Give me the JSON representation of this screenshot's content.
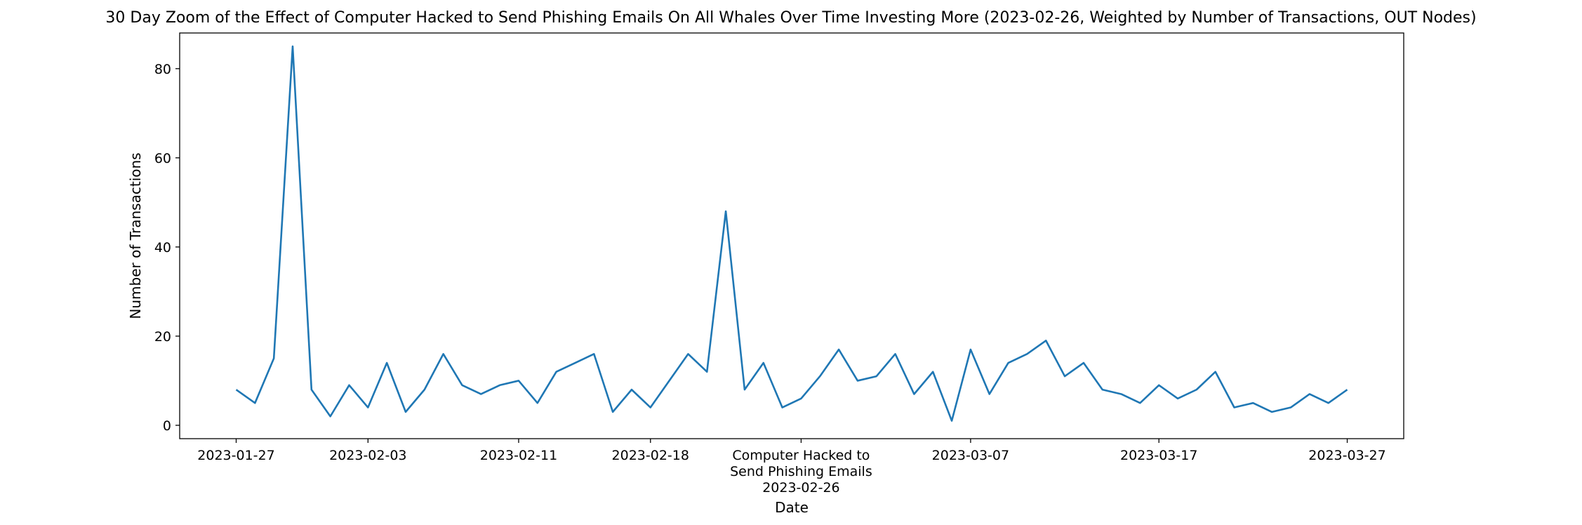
{
  "chart_data": {
    "type": "line",
    "title": "30 Day Zoom of the Effect of Computer Hacked to Send Phishing Emails On All Whales Over Time Investing More (2023-02-26, Weighted by Number of Transactions, OUT Nodes)",
    "xlabel": "Date",
    "ylabel": "Number of Transactions",
    "x_axis_type": "date",
    "xlim": [
      "2023-01-24",
      "2023-03-30"
    ],
    "ylim": [
      -3,
      88
    ],
    "grid": false,
    "color": "#1f77b4",
    "x_ticks": [
      "2023-01-27",
      "2023-02-03",
      "2023-02-11",
      "2023-02-18",
      "2023-02-26",
      "2023-03-07",
      "2023-03-17",
      "2023-03-27"
    ],
    "x_tick_labels": [
      "2023-01-27",
      "2023-02-03",
      "2023-02-11",
      "2023-02-18",
      "Computer Hacked to\nSend Phishing Emails\n2023-02-26",
      "2023-03-07",
      "2023-03-17",
      "2023-03-27"
    ],
    "y_ticks": [
      0,
      20,
      40,
      60,
      80
    ],
    "event": {
      "date": "2023-02-26",
      "label": "Computer Hacked to\nSend Phishing Emails"
    },
    "x": [
      "2023-01-27",
      "2023-01-28",
      "2023-01-29",
      "2023-01-30",
      "2023-01-31",
      "2023-02-01",
      "2023-02-02",
      "2023-02-03",
      "2023-02-04",
      "2023-02-05",
      "2023-02-06",
      "2023-02-07",
      "2023-02-08",
      "2023-02-09",
      "2023-02-10",
      "2023-02-11",
      "2023-02-12",
      "2023-02-13",
      "2023-02-14",
      "2023-02-15",
      "2023-02-16",
      "2023-02-17",
      "2023-02-18",
      "2023-02-19",
      "2023-02-20",
      "2023-02-21",
      "2023-02-22",
      "2023-02-23",
      "2023-02-24",
      "2023-02-25",
      "2023-02-26",
      "2023-02-27",
      "2023-02-28",
      "2023-03-01",
      "2023-03-02",
      "2023-03-03",
      "2023-03-04",
      "2023-03-05",
      "2023-03-06",
      "2023-03-07",
      "2023-03-08",
      "2023-03-09",
      "2023-03-10",
      "2023-03-11",
      "2023-03-12",
      "2023-03-13",
      "2023-03-14",
      "2023-03-15",
      "2023-03-16",
      "2023-03-17",
      "2023-03-18",
      "2023-03-19",
      "2023-03-20",
      "2023-03-21",
      "2023-03-22",
      "2023-03-23",
      "2023-03-24",
      "2023-03-25",
      "2023-03-26",
      "2023-03-27"
    ],
    "values": [
      8,
      5,
      15,
      85,
      8,
      2,
      9,
      4,
      14,
      3,
      8,
      16,
      9,
      7,
      9,
      10,
      5,
      12,
      14,
      16,
      3,
      8,
      4,
      10,
      16,
      12,
      48,
      8,
      14,
      4,
      6,
      11,
      17,
      10,
      11,
      16,
      7,
      12,
      1,
      17,
      7,
      14,
      16,
      19,
      11,
      14,
      8,
      7,
      5,
      9,
      6,
      8,
      12,
      4,
      5,
      3,
      4,
      7,
      5,
      8
    ]
  }
}
